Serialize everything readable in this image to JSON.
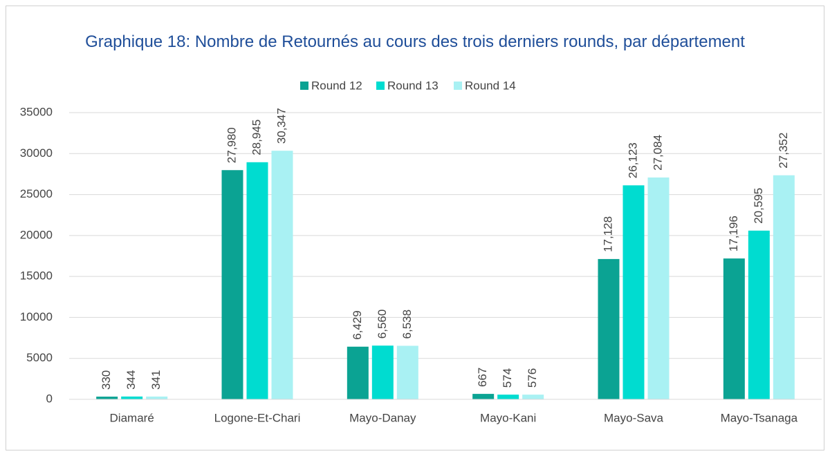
{
  "chart_data": {
    "type": "bar",
    "title": "Graphique 18: Nombre de Retournés au cours des trois derniers rounds, par département",
    "categories": [
      "Diamaré",
      "Logone-Et-Chari",
      "Mayo-Danay",
      "Mayo-Kani",
      "Mayo-Sava",
      "Mayo-Tsanaga"
    ],
    "series": [
      {
        "name": "Round 12",
        "color": "#0ba393",
        "values": [
          330,
          27980,
          6429,
          667,
          17128,
          17196
        ],
        "value_labels": [
          "330",
          "27,980",
          "6,429",
          "667",
          "17,128",
          "17,196"
        ]
      },
      {
        "name": "Round 13",
        "color": "#00dcd0",
        "values": [
          344,
          28945,
          6560,
          574,
          26123,
          20595
        ],
        "value_labels": [
          "344",
          "28,945",
          "6,560",
          "574",
          "26,123",
          "20,595"
        ]
      },
      {
        "name": "Round 14",
        "color": "#a9f1f3",
        "values": [
          341,
          30347,
          6538,
          576,
          27084,
          27352
        ],
        "value_labels": [
          "341",
          "30,347",
          "6,538",
          "576",
          "27,084",
          "27,352"
        ]
      }
    ],
    "ylim": [
      0,
      35000
    ],
    "yticks": [
      0,
      5000,
      10000,
      15000,
      20000,
      25000,
      30000,
      35000
    ],
    "grid": true,
    "legend": "top"
  }
}
